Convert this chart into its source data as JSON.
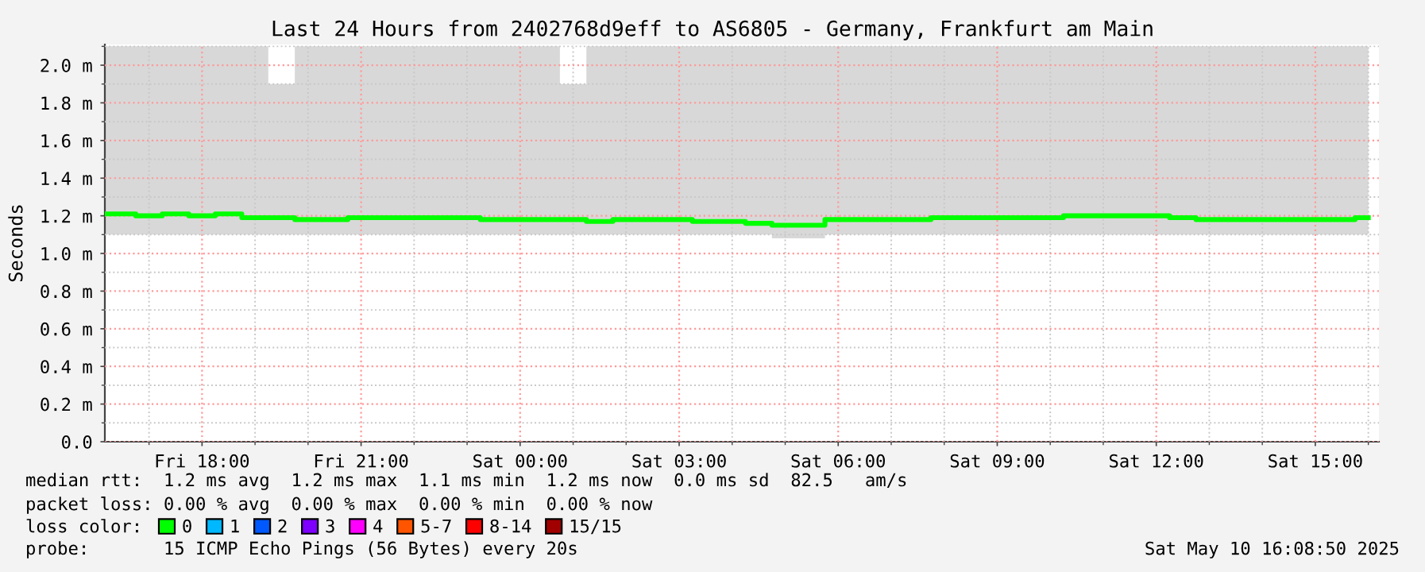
{
  "chart_data": {
    "type": "line",
    "title": "Last 24 Hours from 2402768d9eff to AS6805 - Germany, Frankfurt am Main",
    "ylabel": "Seconds",
    "legend_title": "loss color:",
    "x": [
      "2025-05-09T16:10",
      "2025-05-09T16:30",
      "2025-05-09T17:00",
      "2025-05-09T17:30",
      "2025-05-09T18:00",
      "2025-05-09T18:30",
      "2025-05-09T19:00",
      "2025-05-09T19:30",
      "2025-05-09T20:00",
      "2025-05-09T20:30",
      "2025-05-09T21:00",
      "2025-05-09T21:30",
      "2025-05-09T22:00",
      "2025-05-09T22:30",
      "2025-05-09T23:00",
      "2025-05-09T23:30",
      "2025-05-10T00:00",
      "2025-05-10T00:30",
      "2025-05-10T01:00",
      "2025-05-10T01:30",
      "2025-05-10T02:00",
      "2025-05-10T02:30",
      "2025-05-10T03:00",
      "2025-05-10T03:30",
      "2025-05-10T04:00",
      "2025-05-10T04:30",
      "2025-05-10T05:00",
      "2025-05-10T05:30",
      "2025-05-10T06:00",
      "2025-05-10T06:30",
      "2025-05-10T07:00",
      "2025-05-10T07:30",
      "2025-05-10T08:00",
      "2025-05-10T08:30",
      "2025-05-10T09:00",
      "2025-05-10T09:30",
      "2025-05-10T10:00",
      "2025-05-10T10:30",
      "2025-05-10T11:00",
      "2025-05-10T11:30",
      "2025-05-10T12:00",
      "2025-05-10T12:30",
      "2025-05-10T13:00",
      "2025-05-10T13:30",
      "2025-05-10T14:00",
      "2025-05-10T14:30",
      "2025-05-10T15:00",
      "2025-05-10T15:30",
      "2025-05-10T16:00"
    ],
    "series": [
      {
        "name": "0",
        "color": "#00ff00",
        "values": [
          1.21,
          1.21,
          1.2,
          1.21,
          1.2,
          1.21,
          1.19,
          1.19,
          1.18,
          1.18,
          1.19,
          1.19,
          1.19,
          1.19,
          1.19,
          1.18,
          1.18,
          1.18,
          1.18,
          1.17,
          1.18,
          1.18,
          1.18,
          1.17,
          1.17,
          1.16,
          1.15,
          1.15,
          1.18,
          1.18,
          1.18,
          1.18,
          1.19,
          1.19,
          1.19,
          1.19,
          1.19,
          1.2,
          1.2,
          1.2,
          1.2,
          1.19,
          1.18,
          1.18,
          1.18,
          1.18,
          1.18,
          1.18,
          1.19
        ],
        "lower": [
          1.1,
          1.1,
          1.1,
          1.1,
          1.1,
          1.1,
          1.1,
          1.1,
          1.1,
          1.1,
          1.1,
          1.1,
          1.1,
          1.1,
          1.1,
          1.1,
          1.1,
          1.1,
          1.1,
          1.1,
          1.1,
          1.1,
          1.1,
          1.1,
          1.1,
          1.1,
          1.08,
          1.08,
          1.1,
          1.1,
          1.1,
          1.1,
          1.1,
          1.1,
          1.1,
          1.1,
          1.1,
          1.1,
          1.1,
          1.1,
          1.1,
          1.1,
          1.1,
          1.1,
          1.1,
          1.1,
          1.1,
          1.1,
          1.1
        ],
        "upper": [
          2.1,
          2.1,
          2.1,
          2.1,
          2.1,
          2.1,
          2.1,
          1.9,
          2.1,
          2.1,
          2.1,
          2.1,
          2.1,
          2.1,
          2.1,
          2.1,
          2.1,
          2.1,
          1.9,
          2.1,
          2.1,
          2.1,
          2.1,
          2.1,
          2.1,
          2.1,
          2.1,
          2.1,
          2.1,
          2.1,
          2.1,
          2.1,
          2.1,
          2.1,
          2.1,
          2.1,
          2.1,
          2.1,
          2.1,
          2.1,
          2.1,
          2.1,
          2.1,
          2.1,
          2.1,
          2.1,
          2.1,
          2.1,
          2.1
        ]
      },
      {
        "name": "1",
        "color": "#00b8ff",
        "values": [
          null,
          null,
          null,
          null,
          null,
          null,
          null,
          null,
          null,
          null,
          null,
          null,
          null,
          null,
          null,
          null,
          null,
          null,
          null,
          null,
          null,
          null,
          null,
          null,
          null,
          null,
          null,
          null,
          null,
          null,
          null,
          null,
          null,
          null,
          null,
          null,
          null,
          null,
          null,
          null,
          null,
          null,
          null,
          null,
          null,
          null,
          null,
          null,
          null
        ]
      },
      {
        "name": "2",
        "color": "#0059ff",
        "values": [
          null,
          null,
          null,
          null,
          null,
          null,
          null,
          null,
          null,
          null,
          null,
          null,
          null,
          null,
          null,
          null,
          null,
          null,
          null,
          null,
          null,
          null,
          null,
          null,
          null,
          null,
          null,
          null,
          null,
          null,
          null,
          null,
          null,
          null,
          null,
          null,
          null,
          null,
          null,
          null,
          null,
          null,
          null,
          null,
          null,
          null,
          null,
          null,
          null
        ]
      },
      {
        "name": "3",
        "color": "#7e00ff",
        "values": [
          null,
          null,
          null,
          null,
          null,
          null,
          null,
          null,
          null,
          null,
          null,
          null,
          null,
          null,
          null,
          null,
          null,
          null,
          null,
          null,
          null,
          null,
          null,
          null,
          null,
          null,
          null,
          null,
          null,
          null,
          null,
          null,
          null,
          null,
          null,
          null,
          null,
          null,
          null,
          null,
          null,
          null,
          null,
          null,
          null,
          null,
          null,
          null,
          null
        ]
      },
      {
        "name": "4",
        "color": "#ff00ff",
        "values": [
          null,
          null,
          null,
          null,
          null,
          null,
          null,
          null,
          null,
          null,
          null,
          null,
          null,
          null,
          null,
          null,
          null,
          null,
          null,
          null,
          null,
          null,
          null,
          null,
          null,
          null,
          null,
          null,
          null,
          null,
          null,
          null,
          null,
          null,
          null,
          null,
          null,
          null,
          null,
          null,
          null,
          null,
          null,
          null,
          null,
          null,
          null,
          null,
          null
        ]
      },
      {
        "name": "5-7",
        "color": "#ff5500",
        "values": [
          null,
          null,
          null,
          null,
          null,
          null,
          null,
          null,
          null,
          null,
          null,
          null,
          null,
          null,
          null,
          null,
          null,
          null,
          null,
          null,
          null,
          null,
          null,
          null,
          null,
          null,
          null,
          null,
          null,
          null,
          null,
          null,
          null,
          null,
          null,
          null,
          null,
          null,
          null,
          null,
          null,
          null,
          null,
          null,
          null,
          null,
          null,
          null,
          null
        ]
      },
      {
        "name": "8-14",
        "color": "#ff0000",
        "values": [
          null,
          null,
          null,
          null,
          null,
          null,
          null,
          null,
          null,
          null,
          null,
          null,
          null,
          null,
          null,
          null,
          null,
          null,
          null,
          null,
          null,
          null,
          null,
          null,
          null,
          null,
          null,
          null,
          null,
          null,
          null,
          null,
          null,
          null,
          null,
          null,
          null,
          null,
          null,
          null,
          null,
          null,
          null,
          null,
          null,
          null,
          null,
          null,
          null
        ]
      },
      {
        "name": "15/15",
        "color": "#a10000",
        "values": [
          null,
          null,
          null,
          null,
          null,
          null,
          null,
          null,
          null,
          null,
          null,
          null,
          null,
          null,
          null,
          null,
          null,
          null,
          null,
          null,
          null,
          null,
          null,
          null,
          null,
          null,
          null,
          null,
          null,
          null,
          null,
          null,
          null,
          null,
          null,
          null,
          null,
          null,
          null,
          null,
          null,
          null,
          null,
          null,
          null,
          null,
          null,
          null,
          null
        ]
      }
    ],
    "xlim": [
      "2025-05-09T16:10",
      "2025-05-10T16:12"
    ],
    "xticks": [
      {
        "value": "2025-05-09T18:00",
        "label": "Fri 18:00"
      },
      {
        "value": "2025-05-09T21:00",
        "label": "Fri 21:00"
      },
      {
        "value": "2025-05-10T00:00",
        "label": "Sat 00:00"
      },
      {
        "value": "2025-05-10T03:00",
        "label": "Sat 03:00"
      },
      {
        "value": "2025-05-10T06:00",
        "label": "Sat 06:00"
      },
      {
        "value": "2025-05-10T09:00",
        "label": "Sat 09:00"
      },
      {
        "value": "2025-05-10T12:00",
        "label": "Sat 12:00"
      },
      {
        "value": "2025-05-10T15:00",
        "label": "Sat 15:00"
      }
    ],
    "ylim": [
      0,
      2.11
    ],
    "yticks": [
      {
        "value": 0,
        "label": "0.0"
      },
      {
        "value": 0.2,
        "label": "0.2 m"
      },
      {
        "value": 0.4,
        "label": "0.4 m"
      },
      {
        "value": 0.6,
        "label": "0.6 m"
      },
      {
        "value": 0.8,
        "label": "0.8 m"
      },
      {
        "value": 1.0,
        "label": "1.0 m"
      },
      {
        "value": 1.2,
        "label": "1.2 m"
      },
      {
        "value": 1.4,
        "label": "1.4 m"
      },
      {
        "value": 1.6,
        "label": "1.6 m"
      },
      {
        "value": 1.8,
        "label": "1.8 m"
      },
      {
        "value": 2.0,
        "label": "2.0 m"
      }
    ],
    "grid": true,
    "legend": "bottom",
    "annotations": [
      "median rtt:  1.2 ms avg  1.2 ms max  1.1 ms min  1.2 ms now  0.0 ms sd  82.5   am/s",
      "packet loss: 0.00 % avg  0.00 % max  0.00 % min  0.00 % now",
      "probe:       15 ICMP Echo Pings (56 Bytes) every 20s",
      "Sat May 10 16:08:50 2025"
    ]
  }
}
